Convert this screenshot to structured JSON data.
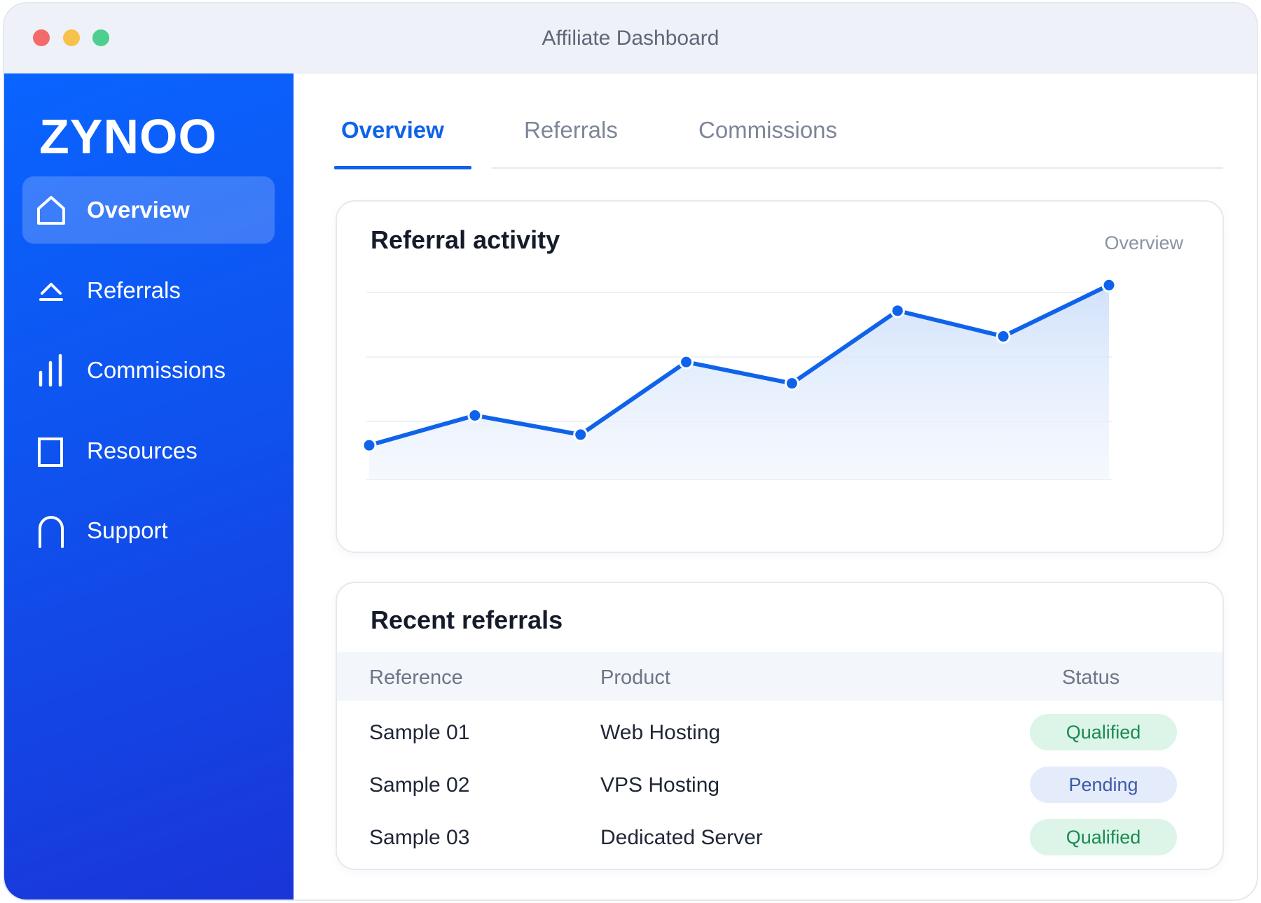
{
  "window": {
    "title": "Affiliate Dashboard"
  },
  "sidebar": {
    "logo": "ZYNOO",
    "items": [
      {
        "label": "Overview",
        "icon": "home-icon",
        "active": true
      },
      {
        "label": "Referrals",
        "icon": "upload-icon",
        "active": false
      },
      {
        "label": "Commissions",
        "icon": "bar-chart-icon",
        "active": false
      },
      {
        "label": "Resources",
        "icon": "square-icon",
        "active": false
      },
      {
        "label": "Support",
        "icon": "arch-icon",
        "active": false
      }
    ]
  },
  "tabs": [
    {
      "label": "Overview",
      "active": true
    },
    {
      "label": "Referrals",
      "active": false
    },
    {
      "label": "Commissions",
      "active": false
    }
  ],
  "activity_card": {
    "title": "Referral activity",
    "subtitle": "Overview"
  },
  "chart_data": {
    "type": "area",
    "title": "Referral activity",
    "x": [
      1,
      2,
      3,
      4,
      5,
      6,
      7,
      8
    ],
    "values": [
      8,
      15,
      10.5,
      27.5,
      22.5,
      39.5,
      33.5,
      45.5
    ],
    "ylim": [
      0,
      48
    ],
    "grid": true,
    "color": "#0f63ea",
    "fill": "#dce8fb"
  },
  "referrals_card": {
    "title": "Recent referrals",
    "columns": [
      "Reference",
      "Product",
      "Status"
    ],
    "rows": [
      {
        "reference": "Sample 01",
        "product": "Web Hosting",
        "status": "Qualified",
        "status_kind": "qualified"
      },
      {
        "reference": "Sample 02",
        "product": "VPS Hosting",
        "status": "Pending",
        "status_kind": "pending"
      },
      {
        "reference": "Sample 03",
        "product": "Dedicated Server",
        "status": "Qualified",
        "status_kind": "qualified"
      }
    ]
  },
  "colors": {
    "accent": "#0f63ea",
    "sidebar_top": "#0a64ff",
    "sidebar_bottom": "#1a35d8",
    "qualified": "#1b8a52",
    "pending": "#3d5aa6"
  }
}
